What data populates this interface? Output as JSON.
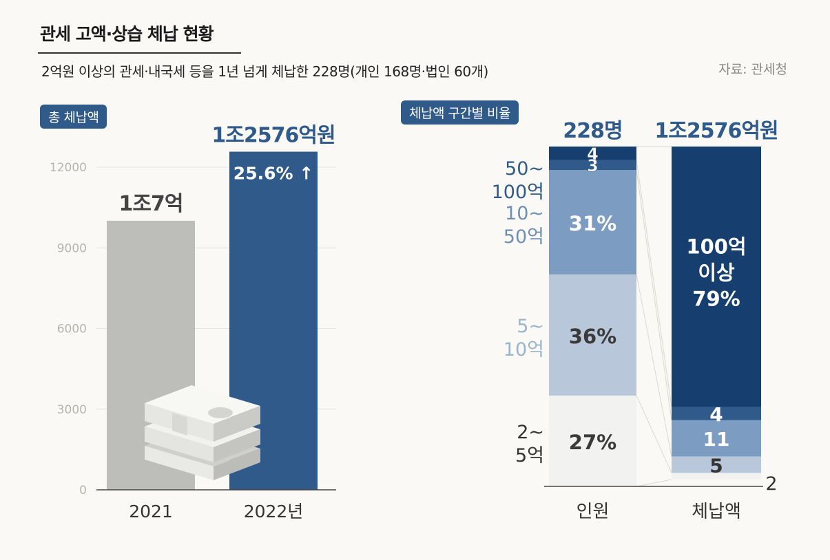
{
  "title": "관세 고액·상습 체납 현황",
  "subtitle": "2억원 이상의 관세·내국세 등을 1년 넘게 체납한 228명(개인 168명·법인 60개)",
  "source": "자료: 관세청",
  "colors": {
    "accent": "#2f5a8a",
    "gray": "#bdbdb9",
    "navy": "#163f6f"
  },
  "chart_data": [
    {
      "type": "bar",
      "badge": "총 체납액",
      "categories": [
        "2021",
        "2022년"
      ],
      "values": [
        10007,
        12576
      ],
      "value_labels": [
        "1조7억",
        "1조2576억원"
      ],
      "change_label": "25.6% ↑",
      "yticks": [
        0,
        3000,
        6000,
        9000,
        12000
      ],
      "ytick_labels": [
        "0",
        "3000",
        "6000",
        "9000",
        "12000"
      ],
      "ylim": [
        0,
        12576
      ],
      "colors": [
        "#bdbdb9",
        "#2f5a8a"
      ]
    },
    {
      "type": "bar",
      "stacked": true,
      "badge": "체납액 구간별 비율",
      "categories": [
        "인원",
        "체납액"
      ],
      "totals": [
        "228명",
        "1조2576억원"
      ],
      "segments": [
        {
          "name": "2~5억",
          "people": 27,
          "amount": 2,
          "color": "#f2f3f1",
          "people_label": "27%",
          "amount_label": "2",
          "axis_label": "2~\n5억",
          "label_color": "#333333"
        },
        {
          "name": "5~10억",
          "people": 36,
          "amount": 5,
          "color": "#b8c8da",
          "people_label": "36%",
          "amount_label": "5",
          "axis_label": "5~\n10억",
          "label_color": "#9ab4cc"
        },
        {
          "name": "10~50억",
          "people": 31,
          "amount": 11,
          "color": "#7c9cc2",
          "people_label": "31%",
          "amount_label": "11",
          "axis_label": "10~\n50억",
          "label_color": "#6f8fb5"
        },
        {
          "name": "50~100억",
          "people": 3,
          "amount": 4,
          "color": "#2f5a8a",
          "people_label": "3",
          "amount_label": "4",
          "axis_label": "50~\n100억",
          "label_color": "#2f5a8a"
        },
        {
          "name": "100억 이상",
          "people": 4,
          "amount": 79,
          "color": "#163f6f",
          "people_label": "4",
          "amount_label": "100억\n이상\n79%",
          "axis_label": "",
          "label_color": "#163f6f"
        }
      ]
    }
  ]
}
